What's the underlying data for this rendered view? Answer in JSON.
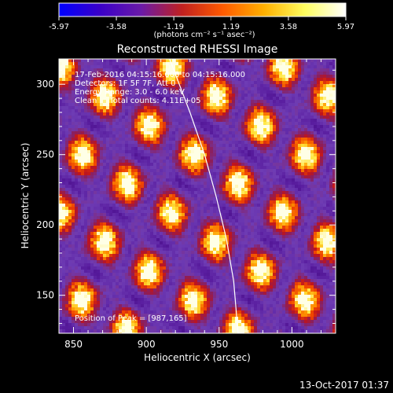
{
  "chart_data": {
    "type": "heatmap",
    "title": "Reconstructed RHESSI Image",
    "xlabel": "Heliocentric X (arcsec)",
    "ylabel": "Heliocentric Y (arcsec)",
    "xlim": [
      840,
      1030
    ],
    "ylim": [
      123,
      318
    ],
    "x_ticks": [
      850,
      900,
      950,
      1000
    ],
    "y_ticks": [
      150,
      200,
      250,
      300
    ],
    "colorbar": {
      "min": -5.97,
      "max": 5.97,
      "tick_values": [
        -5.97,
        -3.58,
        -1.19,
        1.19,
        3.58,
        5.97
      ],
      "tick_labels": [
        "-5.97",
        "-3.58",
        "-1.19",
        "1.19",
        "3.58",
        "5.97"
      ],
      "units": "(photons cm⁻² s⁻¹ asec⁻²)",
      "colors": [
        "#0000ff",
        "#3a00c8",
        "#6a1aa8",
        "#c02020",
        "#ff5a00",
        "#ffb000",
        "#ffff60",
        "#ffffff"
      ]
    },
    "annotations": [
      "17-Feb-2016 04:15:16.000 to 04:15:16.000",
      "Detectors: 1F 5F 7F, Att 0",
      "Energy Range: 3.0 - 6.0 keV",
      "Clean     Total counts: 4.11E+05"
    ],
    "peak_label": "Position of Peak = [987,165]",
    "peak": [
      987,
      165
    ],
    "limb_curve": [
      [
        916,
        318
      ],
      [
        930,
        280
      ],
      [
        940,
        250
      ],
      [
        948,
        220
      ],
      [
        955,
        190
      ],
      [
        960,
        160
      ],
      [
        963,
        123
      ]
    ],
    "grid": false
  },
  "footer": {
    "date": "13-Oct-2017 01:37"
  }
}
